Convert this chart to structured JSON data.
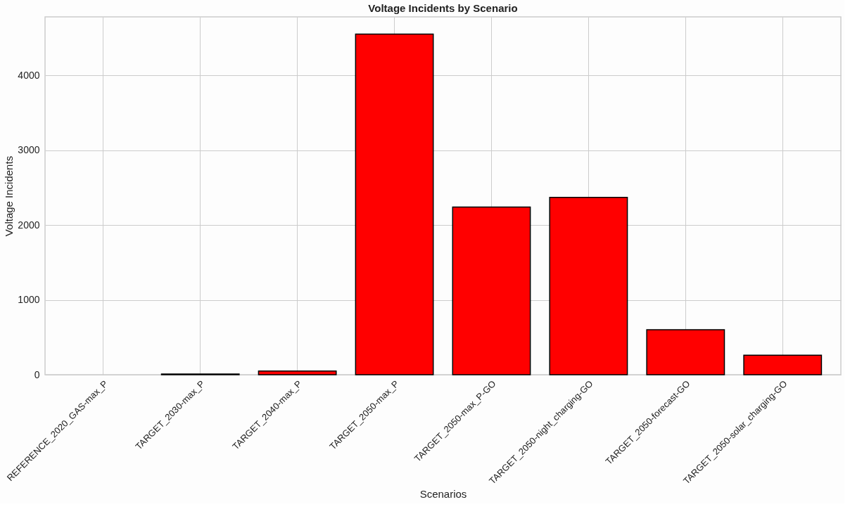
{
  "chart_data": {
    "type": "bar",
    "title": "Voltage Incidents by Scenario",
    "xlabel": "Scenarios",
    "ylabel": "Voltage Incidents",
    "categories": [
      "REFERENCE_2020_GAS-max_P",
      "TARGET_2030-max_P",
      "TARGET_2040-max_P",
      "TARGET_2050-max_P",
      "TARGET_2050-max_P-GO",
      "TARGET_2050-night_charging-GO",
      "TARGET_2050-forecast-GO",
      "TARGET_2050-solar_charging-GO"
    ],
    "values": [
      0,
      10,
      50,
      4550,
      2240,
      2370,
      600,
      260
    ],
    "color": "#ff0000",
    "ylim": [
      0,
      4780
    ],
    "yticks": [
      0,
      1000,
      2000,
      3000,
      4000
    ],
    "grid": true
  }
}
